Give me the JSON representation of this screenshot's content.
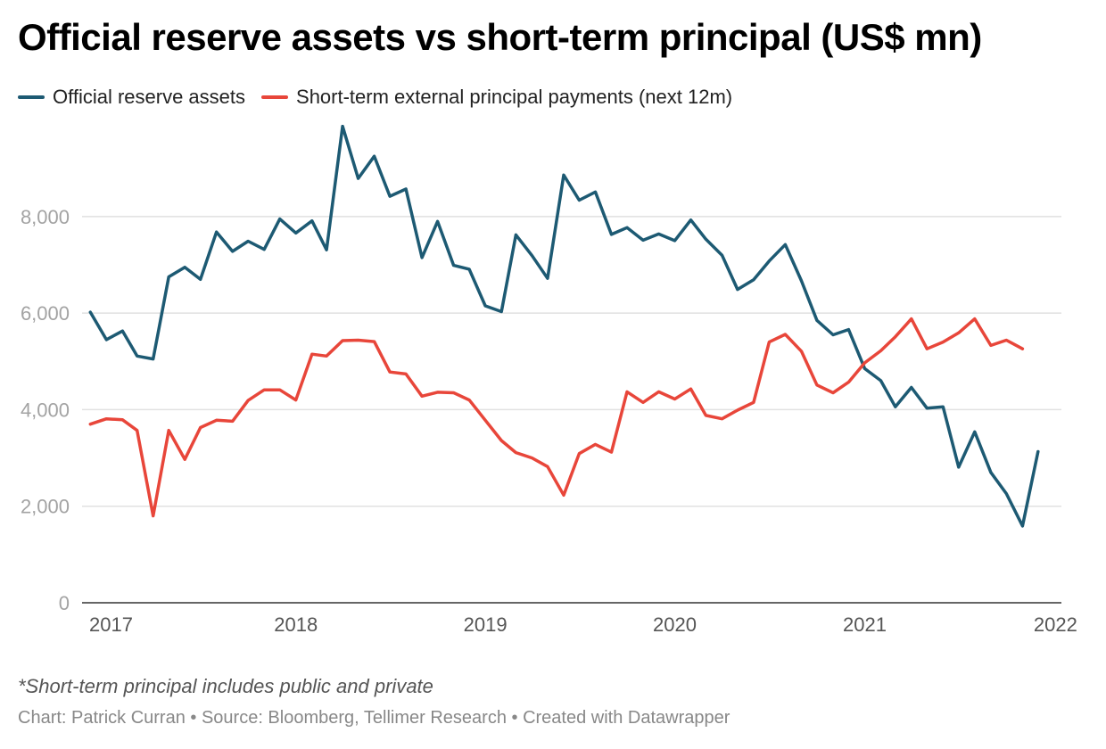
{
  "title": "Official reserve assets vs short-term principal (US$ mn)",
  "legend": [
    {
      "label": "Official reserve assets",
      "color": "#1d5a73"
    },
    {
      "label": "Short-term external principal payments (next 12m)",
      "color": "#e8463a"
    }
  ],
  "footnote": "*Short-term principal includes public and private",
  "credits": "Chart: Patrick Curran • Source: Bloomberg, Tellimer Research • Created with Datawrapper",
  "colors": {
    "grid": "#e1e1e1",
    "axis": "#333333",
    "tick_text": "#a3a3a3",
    "xtick_text": "#555555"
  },
  "chart_data": {
    "type": "line",
    "title": "Official reserve assets vs short-term principal (US$ mn)",
    "xlabel": "",
    "ylabel": "",
    "x_start": "2016-12",
    "x_step": "1 month",
    "xlim": [
      "2016-11-15",
      "2022-01-15"
    ],
    "ylim": [
      0,
      9900
    ],
    "y_ticks": [
      0,
      2000,
      4000,
      6000,
      8000
    ],
    "y_tick_labels": [
      "0",
      "2,000",
      "4,000",
      "6,000",
      "8,000"
    ],
    "x_ticks": [
      2017,
      2018,
      2019,
      2020,
      2021,
      2022
    ],
    "x_tick_labels": [
      "2017",
      "2018",
      "2019",
      "2020",
      "2021",
      "2022"
    ],
    "grid": true,
    "legend_position": "top-left",
    "series": [
      {
        "name": "Official reserve assets",
        "color": "#1d5a73",
        "values": [
          6020,
          5450,
          5630,
          5110,
          5050,
          6750,
          6950,
          6700,
          7680,
          7280,
          7490,
          7320,
          7950,
          7660,
          7910,
          7310,
          9870,
          8790,
          9250,
          8420,
          8570,
          7150,
          7900,
          6990,
          6910,
          6150,
          6030,
          7620,
          7190,
          6720,
          8860,
          8340,
          8510,
          7630,
          7770,
          7510,
          7640,
          7500,
          7930,
          7530,
          7200,
          6490,
          6690,
          7080,
          7420,
          6670,
          5850,
          5550,
          5660,
          4850,
          4600,
          4060,
          4460,
          4030,
          4060,
          2810,
          3540,
          2700,
          2260,
          1590,
          3130
        ]
      },
      {
        "name": "Short-term external principal payments (next 12m)",
        "color": "#e8463a",
        "values": [
          3700,
          3810,
          3790,
          3570,
          1800,
          3570,
          2970,
          3630,
          3780,
          3760,
          4190,
          4410,
          4410,
          4200,
          5150,
          5110,
          5430,
          5440,
          5410,
          4780,
          4740,
          4280,
          4360,
          4350,
          4200,
          3780,
          3360,
          3110,
          3000,
          2820,
          2230,
          3090,
          3280,
          3120,
          4370,
          4150,
          4370,
          4220,
          4430,
          3880,
          3810,
          3990,
          4150,
          5400,
          5560,
          5210,
          4510,
          4350,
          4570,
          4970,
          5220,
          5510,
          5880,
          5260,
          5400,
          5590,
          5880,
          5330,
          5440,
          5260
        ]
      }
    ]
  }
}
